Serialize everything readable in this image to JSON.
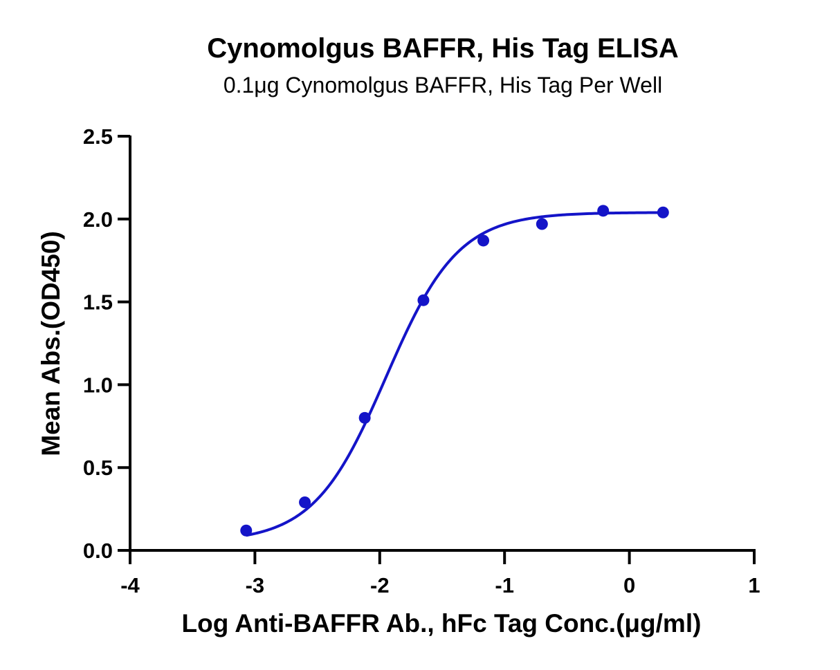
{
  "chart_data": {
    "type": "scatter",
    "title": "Cynomolgus BAFFR, His Tag ELISA",
    "subtitle": "0.1μg Cynomolgus BAFFR, His Tag Per Well",
    "xlabel": "Log Anti-BAFFR Ab., hFc Tag Conc.(μg/ml)",
    "ylabel": "Mean Abs.(OD450)",
    "xlim": [
      -4,
      1
    ],
    "ylim": [
      0,
      2.5
    ],
    "xticks": [
      -4,
      -3,
      -2,
      -1,
      0,
      1
    ],
    "xtick_labels": [
      "-4",
      "-3",
      "-2",
      "-1",
      "0",
      "1"
    ],
    "yticks": [
      0,
      0.5,
      1.0,
      1.5,
      2.0,
      2.5
    ],
    "ytick_labels": [
      "0.0",
      "0.5",
      "1.0",
      "1.5",
      "2.0",
      "2.5"
    ],
    "grid": false,
    "series": [
      {
        "x": [
          -3.07,
          -2.6,
          -2.12,
          -1.65,
          -1.17,
          -0.7,
          -0.21,
          0.27
        ],
        "y": [
          0.12,
          0.29,
          0.8,
          1.51,
          1.87,
          1.97,
          2.05,
          2.04
        ],
        "fit": "four-parameter logistic curve",
        "color": "#1414c8"
      }
    ]
  }
}
